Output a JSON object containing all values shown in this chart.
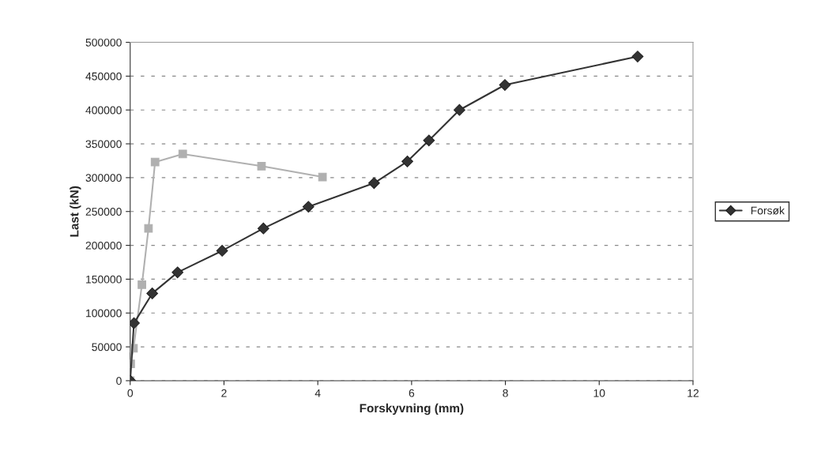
{
  "chart_data": {
    "type": "line",
    "xlabel": "Forskyvning (mm)",
    "ylabel": "Last (kN)",
    "xlim": [
      0,
      12
    ],
    "xticks": [
      0,
      2,
      4,
      6,
      8,
      10,
      12
    ],
    "ylim": [
      0,
      500000
    ],
    "yticks": [
      0,
      50000,
      100000,
      150000,
      200000,
      250000,
      300000,
      350000,
      400000,
      450000,
      500000
    ],
    "grid": "y",
    "legend": "right",
    "series": [
      {
        "name": "Forsøk",
        "color": "#333333",
        "marker": "diamond",
        "x": [
          0,
          0.08,
          0.47,
          1.01,
          1.96,
          2.84,
          3.8,
          5.2,
          5.91,
          6.37,
          7.02,
          7.99,
          10.82
        ],
        "values": [
          0,
          85000,
          129000,
          160000,
          192000,
          225000,
          257000,
          292000,
          324000,
          355000,
          400000,
          437000,
          479000
        ]
      },
      {
        "color": "#b0b0b0",
        "marker": "square",
        "x": [
          0,
          0.01,
          0.07,
          0.25,
          0.39,
          0.53,
          1.12,
          2.8,
          4.1
        ],
        "values": [
          0,
          25000,
          48000,
          142000,
          225000,
          323000,
          335000,
          317000,
          301000
        ]
      }
    ]
  }
}
